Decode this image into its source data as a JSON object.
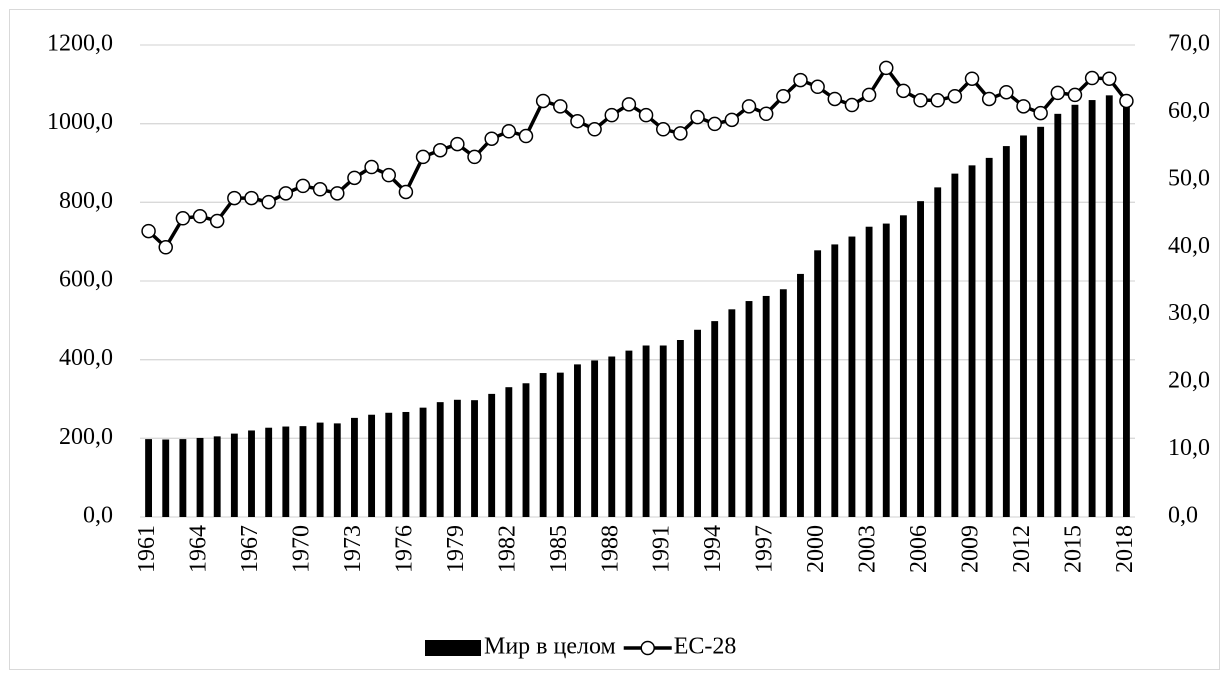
{
  "chart_data": {
    "type": "bar",
    "categories": [
      "1961",
      null,
      null,
      "1964",
      null,
      null,
      "1967",
      null,
      null,
      "1970",
      null,
      null,
      "1973",
      null,
      null,
      "1976",
      null,
      null,
      "1979",
      null,
      null,
      "1982",
      null,
      null,
      "1985",
      null,
      null,
      "1988",
      null,
      null,
      "1991",
      null,
      null,
      "1994",
      null,
      null,
      "1997",
      null,
      null,
      "2000",
      null,
      null,
      "2003",
      null,
      null,
      "2006",
      null,
      null,
      "2009",
      null,
      null,
      "2012",
      null,
      null,
      "2015",
      null,
      null,
      "2018"
    ],
    "series": [
      {
        "name": "Мир в целом",
        "type": "bar",
        "color": "#000000",
        "values": [
          198,
          197,
          198,
          201,
          205,
          212,
          220,
          227,
          230,
          231,
          240,
          238,
          252,
          260,
          265,
          267,
          278,
          292,
          298,
          297,
          313,
          330,
          340,
          366,
          367,
          388,
          398,
          408,
          423,
          436,
          436,
          450,
          476,
          498,
          528,
          549,
          562,
          579,
          618,
          678,
          693,
          713,
          738,
          746,
          767,
          803,
          838,
          873,
          894,
          913,
          943,
          970,
          992,
          1025,
          1048,
          1060,
          1072,
          1060
        ]
      },
      {
        "name": "ЕС-28",
        "type": "line",
        "axis": "y2",
        "color": "#000000",
        "marker_fill": "#ffffff",
        "values": [
          42.4,
          40.0,
          44.3,
          44.6,
          43.9,
          47.3,
          47.3,
          46.7,
          48.0,
          49.1,
          48.6,
          48.0,
          50.3,
          51.9,
          50.7,
          48.2,
          53.4,
          54.4,
          55.3,
          53.4,
          56.1,
          57.2,
          56.5,
          61.7,
          60.9,
          58.7,
          57.5,
          59.6,
          61.2,
          59.6,
          57.5,
          56.9,
          59.3,
          58.3,
          58.9,
          60.9,
          59.8,
          62.4,
          64.8,
          63.8,
          62.0,
          61.1,
          62.6,
          66.6,
          63.2,
          61.8,
          61.8,
          62.4,
          65.0,
          62.0,
          63.0,
          60.9,
          59.9,
          62.9,
          62.6,
          65.1,
          65.0,
          61.7
        ]
      }
    ],
    "ylim": [
      0,
      1200
    ],
    "yticks": [
      {
        "value": 0,
        "label": "0,0"
      },
      {
        "value": 200,
        "label": "200,0"
      },
      {
        "value": 400,
        "label": "400,0"
      },
      {
        "value": 600,
        "label": "600,0"
      },
      {
        "value": 800,
        "label": "800,0"
      },
      {
        "value": 1000,
        "label": "1000,0"
      },
      {
        "value": 1200,
        "label": "1200,0"
      }
    ],
    "y2lim": [
      0,
      70
    ],
    "y2ticks": [
      {
        "value": 0,
        "label": "0,0"
      },
      {
        "value": 10,
        "label": "10,0"
      },
      {
        "value": 20,
        "label": "20,0"
      },
      {
        "value": 30,
        "label": "30,0"
      },
      {
        "value": 40,
        "label": "40,0"
      },
      {
        "value": 50,
        "label": "50,0"
      },
      {
        "value": 60,
        "label": "60,0"
      },
      {
        "value": 70,
        "label": "70,0"
      }
    ],
    "grid": true,
    "legend": "bottom"
  }
}
